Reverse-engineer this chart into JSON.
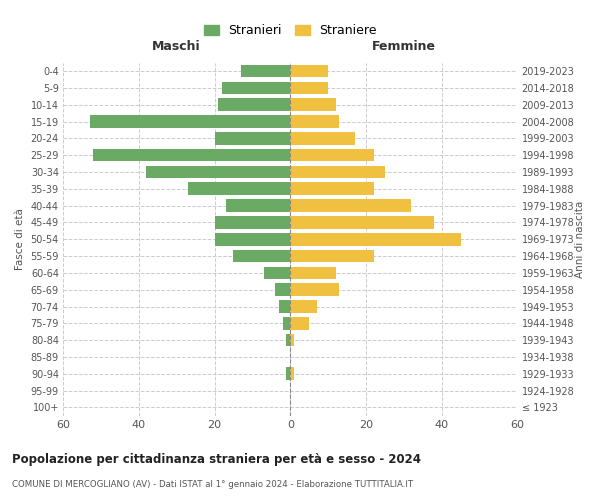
{
  "age_groups": [
    "0-4",
    "5-9",
    "10-14",
    "15-19",
    "20-24",
    "25-29",
    "30-34",
    "35-39",
    "40-44",
    "45-49",
    "50-54",
    "55-59",
    "60-64",
    "65-69",
    "70-74",
    "75-79",
    "80-84",
    "85-89",
    "90-94",
    "95-99",
    "100+"
  ],
  "birth_years": [
    "2019-2023",
    "2014-2018",
    "2009-2013",
    "2004-2008",
    "1999-2003",
    "1994-1998",
    "1989-1993",
    "1984-1988",
    "1979-1983",
    "1974-1978",
    "1969-1973",
    "1964-1968",
    "1959-1963",
    "1954-1958",
    "1949-1953",
    "1944-1948",
    "1939-1943",
    "1934-1938",
    "1929-1933",
    "1924-1928",
    "≤ 1923"
  ],
  "males": [
    13,
    18,
    19,
    53,
    20,
    52,
    38,
    27,
    17,
    20,
    20,
    15,
    7,
    4,
    3,
    2,
    1,
    0,
    1,
    0,
    0
  ],
  "females": [
    10,
    10,
    12,
    13,
    17,
    22,
    25,
    22,
    32,
    38,
    45,
    22,
    12,
    13,
    7,
    5,
    1,
    0,
    1,
    0,
    0
  ],
  "male_color": "#6aaa64",
  "female_color": "#f0c040",
  "background_color": "#ffffff",
  "grid_color": "#cccccc",
  "title": "Popolazione per cittadinanza straniera per età e sesso - 2024",
  "subtitle": "COMUNE DI MERCOGLIANO (AV) - Dati ISTAT al 1° gennaio 2024 - Elaborazione TUTTITALIA.IT",
  "xlabel_left": "Maschi",
  "xlabel_right": "Femmine",
  "ylabel_left": "Fasce di età",
  "ylabel_right": "Anni di nascita",
  "legend_male": "Stranieri",
  "legend_female": "Straniere",
  "xlim": 60,
  "xtick_positions": [
    -60,
    -40,
    -20,
    0,
    20,
    40,
    60
  ],
  "xtick_labels": [
    "60",
    "40",
    "20",
    "0",
    "20",
    "40",
    "60"
  ]
}
